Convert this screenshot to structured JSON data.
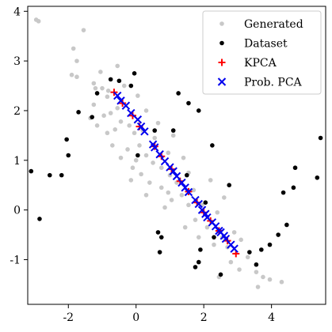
{
  "chart_data": {
    "type": "scatter",
    "title": "",
    "xlabel": "",
    "ylabel": "",
    "xlim": [
      -3.2,
      5.6
    ],
    "ylim": [
      -1.9,
      4.1
    ],
    "xticks": [
      -2,
      0,
      2,
      4
    ],
    "xtick_labels": [
      "-2",
      "0",
      "2",
      "4"
    ],
    "yticks": [
      -1,
      0,
      1,
      2,
      3,
      4
    ],
    "ytick_labels": [
      "-1",
      "0",
      "1",
      "2",
      "3",
      "4"
    ],
    "grid": false,
    "legend_position": "top-right",
    "series": [
      {
        "name": "Generated",
        "marker": "dot",
        "color": "#c8c8c8",
        "points": [
          [
            -2.95,
            3.83
          ],
          [
            -2.88,
            3.8
          ],
          [
            -1.55,
            3.62
          ],
          [
            -1.85,
            3.25
          ],
          [
            -1.75,
            3.0
          ],
          [
            -1.9,
            2.72
          ],
          [
            -1.75,
            2.68
          ],
          [
            -1.05,
            2.78
          ],
          [
            -0.55,
            2.9
          ],
          [
            -1.25,
            2.55
          ],
          [
            -1.2,
            2.45
          ],
          [
            -1.0,
            2.45
          ],
          [
            -0.82,
            2.4
          ],
          [
            -0.85,
            2.28
          ],
          [
            -1.25,
            2.12
          ],
          [
            -1.35,
            1.85
          ],
          [
            -1.15,
            1.7
          ],
          [
            -0.95,
            1.9
          ],
          [
            -0.75,
            1.95
          ],
          [
            -0.55,
            2.05
          ],
          [
            -0.62,
            1.62
          ],
          [
            -0.85,
            1.55
          ],
          [
            -0.45,
            1.78
          ],
          [
            -0.2,
            1.7
          ],
          [
            -0.05,
            1.55
          ],
          [
            0.2,
            1.6
          ],
          [
            0.1,
            1.3
          ],
          [
            -0.25,
            1.22
          ],
          [
            -0.45,
            1.05
          ],
          [
            0.0,
            1.0
          ],
          [
            0.3,
            1.1
          ],
          [
            0.55,
            1.45
          ],
          [
            0.5,
            0.95
          ],
          [
            0.15,
            0.72
          ],
          [
            -0.15,
            0.6
          ],
          [
            0.4,
            0.55
          ],
          [
            0.75,
            0.85
          ],
          [
            0.95,
            1.15
          ],
          [
            1.0,
            0.7
          ],
          [
            0.75,
            0.45
          ],
          [
            1.2,
            0.55
          ],
          [
            1.35,
            0.3
          ],
          [
            1.05,
            0.2
          ],
          [
            0.85,
            0.05
          ],
          [
            1.55,
            0.1
          ],
          [
            1.7,
            0.4
          ],
          [
            1.95,
            0.1
          ],
          [
            1.75,
            -0.2
          ],
          [
            1.45,
            -0.35
          ],
          [
            2.1,
            -0.35
          ],
          [
            2.4,
            -0.05
          ],
          [
            2.55,
            -0.55
          ],
          [
            2.3,
            -0.7
          ],
          [
            2.7,
            -0.75
          ],
          [
            2.9,
            -0.45
          ],
          [
            2.8,
            -1.05
          ],
          [
            3.05,
            -1.2
          ],
          [
            3.3,
            -0.95
          ],
          [
            3.55,
            -1.25
          ],
          [
            3.75,
            -1.35
          ],
          [
            3.6,
            -1.55
          ],
          [
            3.95,
            -1.4
          ],
          [
            4.3,
            -1.45
          ],
          [
            2.45,
            -1.35
          ],
          [
            0.3,
            2.0
          ],
          [
            0.05,
            2.3
          ],
          [
            -0.35,
            2.5
          ],
          [
            1.1,
            1.5
          ],
          [
            1.4,
            1.05
          ],
          [
            1.55,
            0.75
          ],
          [
            0.65,
            1.75
          ],
          [
            -0.1,
            0.85
          ],
          [
            0.3,
            0.3
          ],
          [
            1.85,
            -0.55
          ],
          [
            2.6,
            0.25
          ],
          [
            3.1,
            -0.6
          ],
          [
            -0.7,
            1.3
          ],
          [
            0.95,
            0.35
          ],
          [
            2.2,
            0.6
          ]
        ]
      },
      {
        "name": "Dataset",
        "marker": "dot",
        "color": "#000000",
        "points": [
          [
            -3.1,
            0.78
          ],
          [
            -2.85,
            -0.18
          ],
          [
            -2.55,
            0.7
          ],
          [
            -2.2,
            0.7
          ],
          [
            -2.05,
            1.42
          ],
          [
            -2.0,
            1.1
          ],
          [
            -1.7,
            1.97
          ],
          [
            -1.3,
            1.87
          ],
          [
            -1.15,
            2.35
          ],
          [
            -0.75,
            2.63
          ],
          [
            -0.5,
            2.6
          ],
          [
            -0.15,
            2.5
          ],
          [
            -0.05,
            2.75
          ],
          [
            0.05,
            1.1
          ],
          [
            0.55,
            1.6
          ],
          [
            1.1,
            1.6
          ],
          [
            1.25,
            2.35
          ],
          [
            1.55,
            2.15
          ],
          [
            1.5,
            0.7
          ],
          [
            1.85,
            2.0
          ],
          [
            2.25,
            1.3
          ],
          [
            2.05,
            0.15
          ],
          [
            2.75,
            0.5
          ],
          [
            0.65,
            -0.45
          ],
          [
            0.75,
            -0.55
          ],
          [
            0.7,
            -0.85
          ],
          [
            1.75,
            -1.15
          ],
          [
            1.85,
            -1.05
          ],
          [
            1.9,
            -0.8
          ],
          [
            2.5,
            -1.3
          ],
          [
            2.3,
            -0.55
          ],
          [
            3.35,
            -0.85
          ],
          [
            3.7,
            -0.8
          ],
          [
            3.95,
            -0.7
          ],
          [
            4.2,
            -0.5
          ],
          [
            4.45,
            -0.3
          ],
          [
            4.35,
            0.35
          ],
          [
            4.65,
            0.45
          ],
          [
            4.7,
            0.85
          ],
          [
            5.35,
            0.65
          ],
          [
            5.45,
            1.45
          ],
          [
            3.55,
            -1.1
          ]
        ]
      },
      {
        "name": "KPCA",
        "marker": "plus",
        "color": "#ff0000",
        "points": [
          [
            -0.65,
            2.37
          ],
          [
            -0.4,
            2.15
          ],
          [
            -0.1,
            1.9
          ],
          [
            0.1,
            1.68
          ],
          [
            0.55,
            1.28
          ],
          [
            0.75,
            1.08
          ],
          [
            1.05,
            0.82
          ],
          [
            1.3,
            0.58
          ],
          [
            1.55,
            0.37
          ],
          [
            1.8,
            0.15
          ],
          [
            2.0,
            -0.05
          ],
          [
            2.2,
            -0.22
          ],
          [
            2.45,
            -0.42
          ],
          [
            2.7,
            -0.62
          ],
          [
            2.95,
            -0.88
          ]
        ]
      },
      {
        "name": "Prob. PCA",
        "marker": "x",
        "color": "#0000ee",
        "points": [
          [
            -0.55,
            2.3
          ],
          [
            -0.45,
            2.2
          ],
          [
            -0.3,
            2.1
          ],
          [
            -0.15,
            1.95
          ],
          [
            0.05,
            1.82
          ],
          [
            0.15,
            1.68
          ],
          [
            0.25,
            1.58
          ],
          [
            0.5,
            1.32
          ],
          [
            0.55,
            1.26
          ],
          [
            0.7,
            1.12
          ],
          [
            0.85,
            0.98
          ],
          [
            1.0,
            0.86
          ],
          [
            1.1,
            0.78
          ],
          [
            1.2,
            0.68
          ],
          [
            1.35,
            0.55
          ],
          [
            1.45,
            0.45
          ],
          [
            1.55,
            0.36
          ],
          [
            1.75,
            0.2
          ],
          [
            1.85,
            0.12
          ],
          [
            1.95,
            0.0
          ],
          [
            2.05,
            -0.08
          ],
          [
            2.1,
            -0.15
          ],
          [
            2.25,
            -0.25
          ],
          [
            2.35,
            -0.33
          ],
          [
            2.45,
            -0.42
          ],
          [
            2.5,
            -0.45
          ],
          [
            2.6,
            -0.52
          ],
          [
            2.65,
            -0.58
          ],
          [
            2.8,
            -0.7
          ],
          [
            2.9,
            -0.78
          ]
        ]
      }
    ]
  }
}
